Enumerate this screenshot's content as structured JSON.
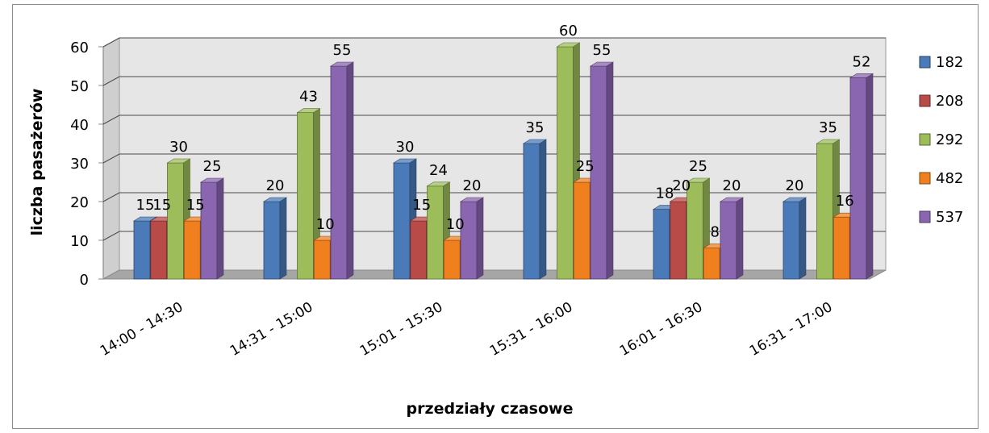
{
  "chart_data": {
    "type": "bar",
    "title": "",
    "xlabel": "przedziały czasowe",
    "ylabel": "liczba pasażerów",
    "ylim": [
      0,
      60
    ],
    "yticks": [
      0,
      10,
      20,
      30,
      40,
      50,
      60
    ],
    "categories": [
      "14:00 - 14:30",
      "14:31 - 15:00",
      "15:01 - 15:30",
      "15:31 - 16:00",
      "16:01 - 16:30",
      "16:31 - 17:00"
    ],
    "series": [
      {
        "name": "182",
        "color": "#4a7ab8",
        "values": [
          15,
          20,
          30,
          35,
          18,
          20
        ]
      },
      {
        "name": "208",
        "color": "#b84a48",
        "values": [
          15,
          0,
          15,
          0,
          20,
          0
        ]
      },
      {
        "name": "292",
        "color": "#9cbd5a",
        "values": [
          30,
          43,
          24,
          60,
          25,
          35
        ]
      },
      {
        "name": "482",
        "color": "#f07f1e",
        "values": [
          15,
          10,
          10,
          25,
          8,
          16
        ]
      },
      {
        "name": "537",
        "color": "#8a66b0",
        "values": [
          25,
          55,
          20,
          55,
          20,
          52
        ]
      }
    ],
    "data_labels": [
      [
        "15",
        "15",
        "30",
        "15",
        "25"
      ],
      [
        "20",
        "",
        "43",
        "10",
        "55"
      ],
      [
        "30",
        "15",
        "24",
        "10",
        "20"
      ],
      [
        "35",
        "",
        "60",
        "25",
        "55"
      ],
      [
        "18",
        "20",
        "25",
        "8",
        "20"
      ],
      [
        "20",
        "",
        "35",
        "16",
        "52"
      ]
    ],
    "grid": true,
    "legend_position": "right"
  }
}
